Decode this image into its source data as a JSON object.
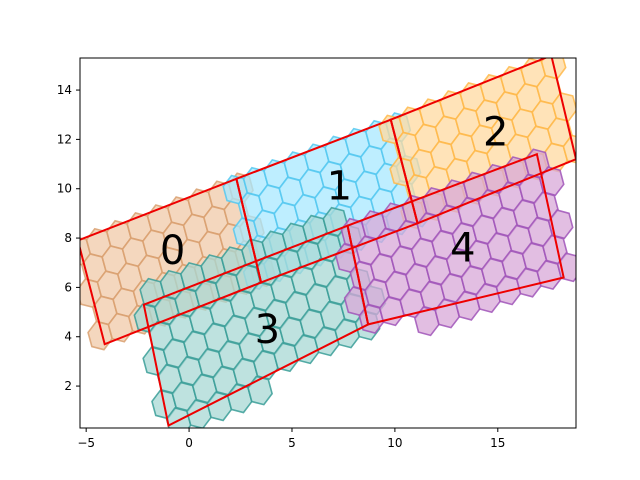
{
  "chart_data": {
    "type": "scatter",
    "title": "",
    "xlabel": "",
    "ylabel": "",
    "xlim": [
      -5.3,
      18.8
    ],
    "ylim": [
      0.3,
      15.3
    ],
    "grid": false,
    "x_ticks": [
      {
        "value": -5,
        "label": "−5"
      },
      {
        "value": 0,
        "label": "0"
      },
      {
        "value": 5,
        "label": "5"
      },
      {
        "value": 10,
        "label": "10"
      },
      {
        "value": 15,
        "label": "15"
      }
    ],
    "y_ticks": [
      {
        "value": 2,
        "label": "2"
      },
      {
        "value": 4,
        "label": "4"
      },
      {
        "value": 6,
        "label": "6"
      },
      {
        "value": 8,
        "label": "8"
      },
      {
        "value": 10,
        "label": "10"
      },
      {
        "value": 12,
        "label": "12"
      },
      {
        "value": 14,
        "label": "14"
      }
    ],
    "hexagon_radius": 0.6,
    "outline_color": "#ee0000",
    "regions": [
      {
        "label": "0",
        "label_pos": [
          -0.8,
          7.4
        ],
        "fill": "#f0c9a8",
        "edge": "#d9a070",
        "polygon": [
          [
            -5.4,
            7.9
          ],
          [
            2.3,
            10.4
          ],
          [
            3.5,
            6.2
          ],
          [
            -4.1,
            3.7
          ]
        ],
        "hex_grid": {
          "center": [
            -0.9,
            7.05
          ],
          "cols": 12,
          "rows": 7
        }
      },
      {
        "label": "1",
        "label_pos": [
          7.3,
          10.0
        ],
        "fill": "#a8e8ff",
        "edge": "#55c8f0",
        "polygon": [
          [
            2.3,
            10.4
          ],
          [
            9.8,
            12.8
          ],
          [
            11.1,
            8.6
          ],
          [
            3.5,
            6.2
          ]
        ],
        "hex_grid": {
          "center": [
            6.7,
            9.5
          ],
          "cols": 12,
          "rows": 7
        }
      },
      {
        "label": "2",
        "label_pos": [
          14.9,
          12.2
        ],
        "fill": "#ffd9a0",
        "edge": "#ffb84a",
        "polygon": [
          [
            9.8,
            12.8
          ],
          [
            17.6,
            15.4
          ],
          [
            18.8,
            11.2
          ],
          [
            11.1,
            8.6
          ]
        ],
        "hex_grid": {
          "center": [
            14.3,
            12.0
          ],
          "cols": 12,
          "rows": 7
        }
      },
      {
        "label": "3",
        "label_pos": [
          3.8,
          4.2
        ],
        "fill": "#a8d8d4",
        "edge": "#3a9e98",
        "polygon": [
          [
            -2.2,
            5.3
          ],
          [
            7.7,
            8.5
          ],
          [
            8.7,
            4.5
          ],
          [
            -1.0,
            0.4
          ]
        ],
        "hex_grid": {
          "center": [
            3.3,
            4.6
          ],
          "cols": 15,
          "rows": 8
        }
      },
      {
        "label": "4",
        "label_pos": [
          13.3,
          7.5
        ],
        "fill": "#d8a8d8",
        "edge": "#a055b8",
        "polygon": [
          [
            7.7,
            8.5
          ],
          [
            16.9,
            11.4
          ],
          [
            18.2,
            6.4
          ],
          [
            8.7,
            4.5
          ]
        ],
        "hex_grid": {
          "center": [
            13.1,
            7.0
          ],
          "cols": 15,
          "rows": 8
        }
      }
    ]
  }
}
